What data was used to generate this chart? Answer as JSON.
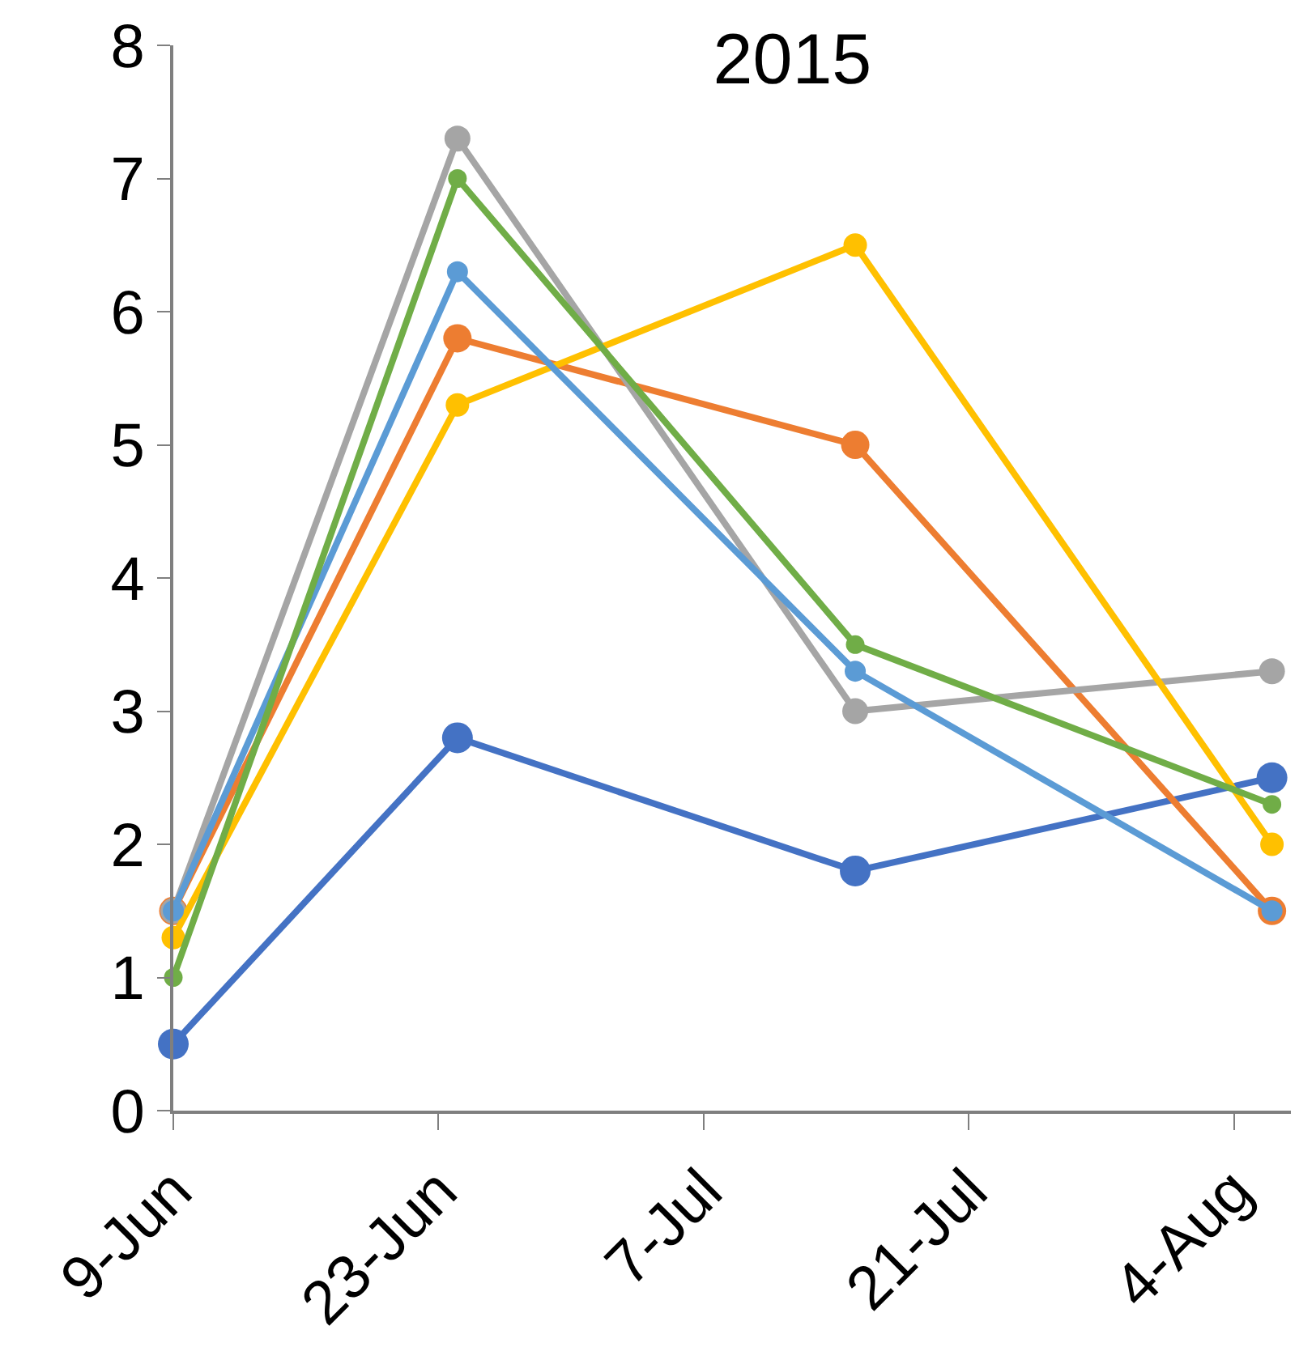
{
  "chart_data": {
    "type": "line",
    "title": "2015",
    "x": [
      "2015-06-09",
      "2015-06-24",
      "2015-07-15",
      "2015-08-06"
    ],
    "series": [
      {
        "color": "#4472c4",
        "values": [
          0.5,
          2.8,
          1.8,
          2.5
        ]
      },
      {
        "color": "#ed7d31",
        "values": [
          1.5,
          5.8,
          5.0,
          1.5
        ]
      },
      {
        "color": "#a5a5a5",
        "values": [
          1.5,
          7.3,
          3.0,
          3.3
        ]
      },
      {
        "color": "#ffc000",
        "values": [
          1.3,
          5.3,
          6.5,
          2.0
        ]
      },
      {
        "color": "#5b9bd5",
        "values": [
          1.5,
          6.3,
          3.3,
          1.5
        ]
      },
      {
        "color": "#70ad47",
        "values": [
          1.0,
          7.0,
          3.5,
          2.3
        ]
      }
    ],
    "xlim": [
      "2015-06-09",
      "2015-08-07"
    ],
    "xticks": [
      {
        "value": "2015-06-09",
        "label": "9-Jun"
      },
      {
        "value": "2015-06-23",
        "label": "23-Jun"
      },
      {
        "value": "2015-07-07",
        "label": "7-Jul"
      },
      {
        "value": "2015-07-21",
        "label": "21-Jul"
      },
      {
        "value": "2015-08-04",
        "label": "4-Aug"
      }
    ],
    "ylim": [
      0,
      8
    ],
    "yticks": [
      0,
      1,
      2,
      3,
      4,
      5,
      6,
      7,
      8
    ],
    "marker": "circle",
    "line_style": "solid"
  }
}
